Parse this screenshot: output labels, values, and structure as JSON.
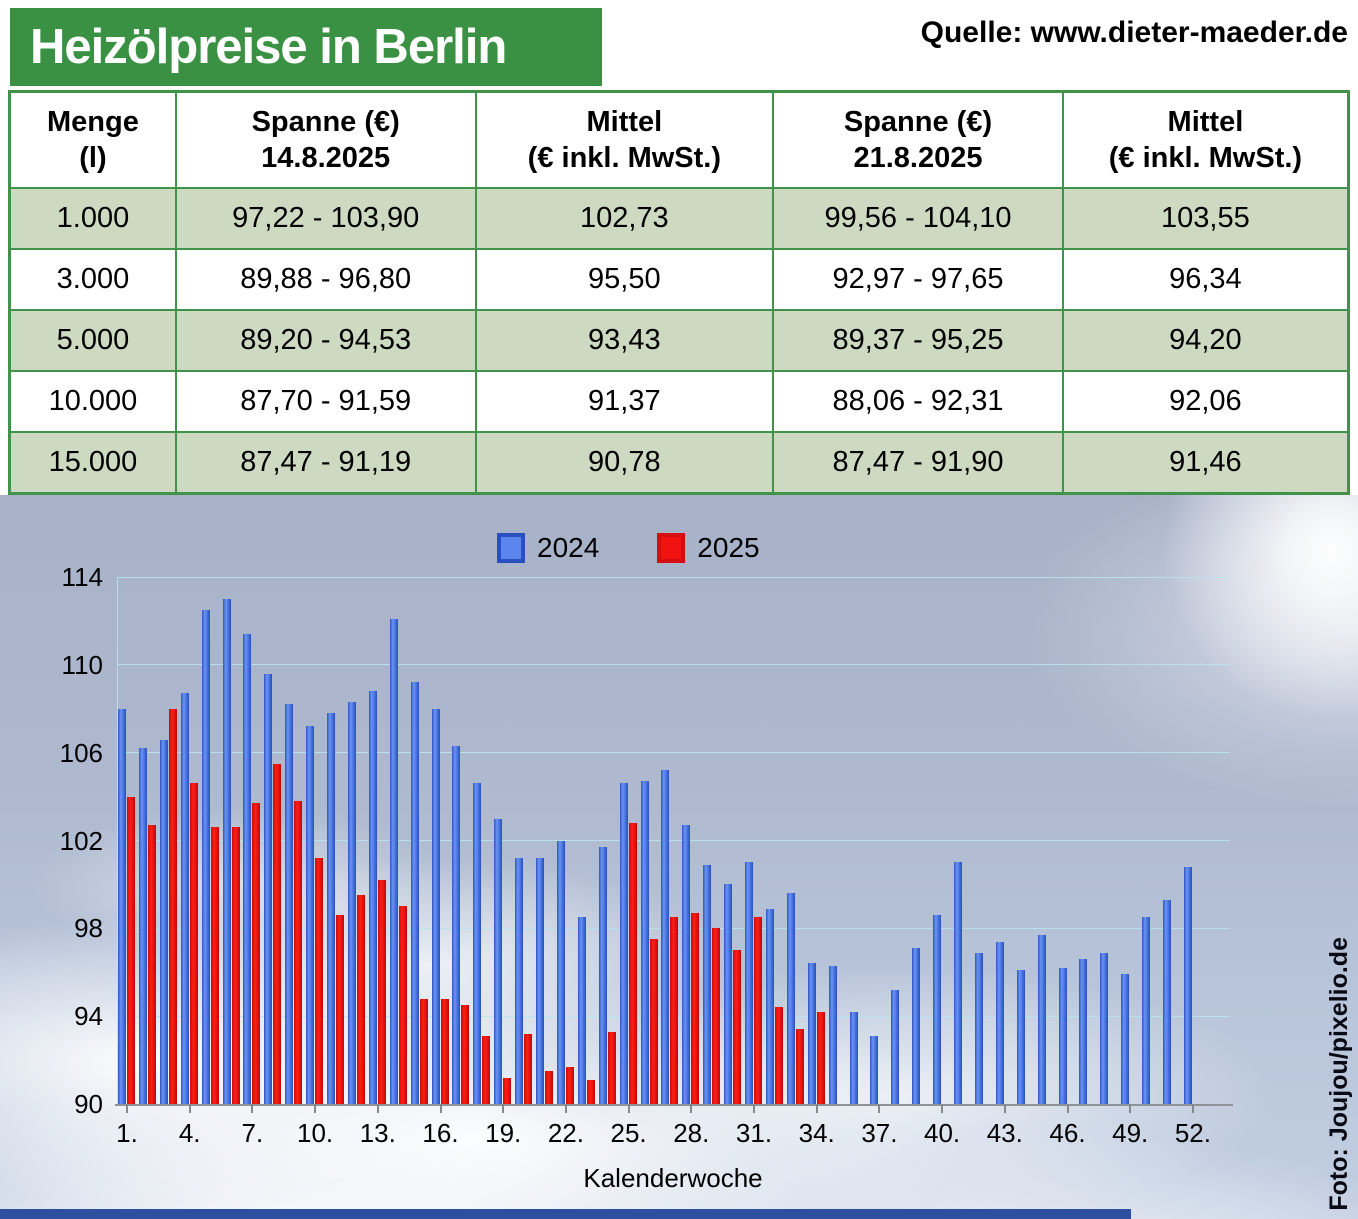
{
  "header": {
    "title": "Heizölpreise in Berlin",
    "source": "Quelle: www.dieter-maeder.de"
  },
  "table": {
    "col_headers": [
      {
        "line1": "Menge",
        "line2": "(l)"
      },
      {
        "line1": "Spanne (€)",
        "line2": "14.8.2025"
      },
      {
        "line1": "Mittel",
        "line2": "(€ inkl. MwSt.)"
      },
      {
        "line1": "Spanne (€)",
        "line2": "21.8.2025"
      },
      {
        "line1": "Mittel",
        "line2": "(€ inkl. MwSt.)"
      }
    ],
    "rows": [
      [
        "1.000",
        "97,22 - 103,90",
        "102,73",
        "99,56 - 104,10",
        "103,55"
      ],
      [
        "3.000",
        "89,88 - 96,80",
        "95,50",
        "92,97 - 97,65",
        "96,34"
      ],
      [
        "5.000",
        "89,20 - 94,53",
        "93,43",
        "89,37 - 95,25",
        "94,20"
      ],
      [
        "10.000",
        "87,70 - 91,59",
        "91,37",
        "88,06 - 92,31",
        "92,06"
      ],
      [
        "15.000",
        "87,47 - 91,19",
        "90,78",
        "87,47 - 91,90",
        "91,46"
      ]
    ]
  },
  "chart_data": {
    "type": "bar",
    "title": "",
    "xlabel": "Kalenderwoche",
    "ylabel": "",
    "ylim": [
      90,
      114
    ],
    "grid": true,
    "legend_position": "top",
    "yticks": [
      114,
      110,
      106,
      102,
      98,
      94,
      90
    ],
    "xtick_labels": [
      "1.",
      "4.",
      "7.",
      "10.",
      "13.",
      "16.",
      "19.",
      "22.",
      "25.",
      "28.",
      "31.",
      "34.",
      "37.",
      "40.",
      "43.",
      "46.",
      "49.",
      "52."
    ],
    "categories_weeks": [
      1,
      2,
      3,
      4,
      5,
      6,
      7,
      8,
      9,
      10,
      11,
      12,
      13,
      14,
      15,
      16,
      17,
      18,
      19,
      20,
      21,
      22,
      23,
      24,
      25,
      26,
      27,
      28,
      29,
      30,
      31,
      32,
      33,
      34,
      35,
      36,
      37,
      38,
      39,
      40,
      41,
      42,
      43,
      44,
      45,
      46,
      47,
      48,
      49,
      50,
      51,
      52
    ],
    "series": [
      {
        "name": "2024",
        "color": "#4a77e4",
        "border_color": "#2a50c0",
        "values": [
          108.0,
          106.2,
          106.6,
          108.7,
          112.5,
          113.0,
          111.4,
          109.6,
          108.2,
          107.2,
          107.8,
          108.3,
          108.8,
          112.1,
          109.2,
          108.0,
          106.3,
          104.6,
          103.0,
          101.2,
          101.2,
          102.0,
          98.5,
          101.7,
          104.6,
          104.7,
          105.2,
          102.7,
          100.9,
          100.0,
          101.0,
          98.9,
          99.6,
          96.4,
          96.3,
          94.2,
          93.1,
          95.2,
          97.1,
          98.6,
          101.0,
          96.9,
          97.4,
          96.1,
          97.7,
          96.2,
          96.6,
          96.9,
          95.9,
          98.5,
          99.3,
          100.8
        ]
      },
      {
        "name": "2025",
        "color": "#e21010",
        "border_color": "#b50b0b",
        "values": [
          104.0,
          102.7,
          108.0,
          104.6,
          102.6,
          102.6,
          103.7,
          105.5,
          103.8,
          101.2,
          98.6,
          99.5,
          100.2,
          99.0,
          94.8,
          94.8,
          94.5,
          93.1,
          91.2,
          93.2,
          91.5,
          91.7,
          91.1,
          93.3,
          102.8,
          97.5,
          98.5,
          98.7,
          98.0,
          97.0,
          98.5,
          94.4,
          93.4,
          94.2
        ]
      }
    ]
  },
  "footer": {
    "photo_credit": "Foto: Joujou/pixelio.de"
  }
}
